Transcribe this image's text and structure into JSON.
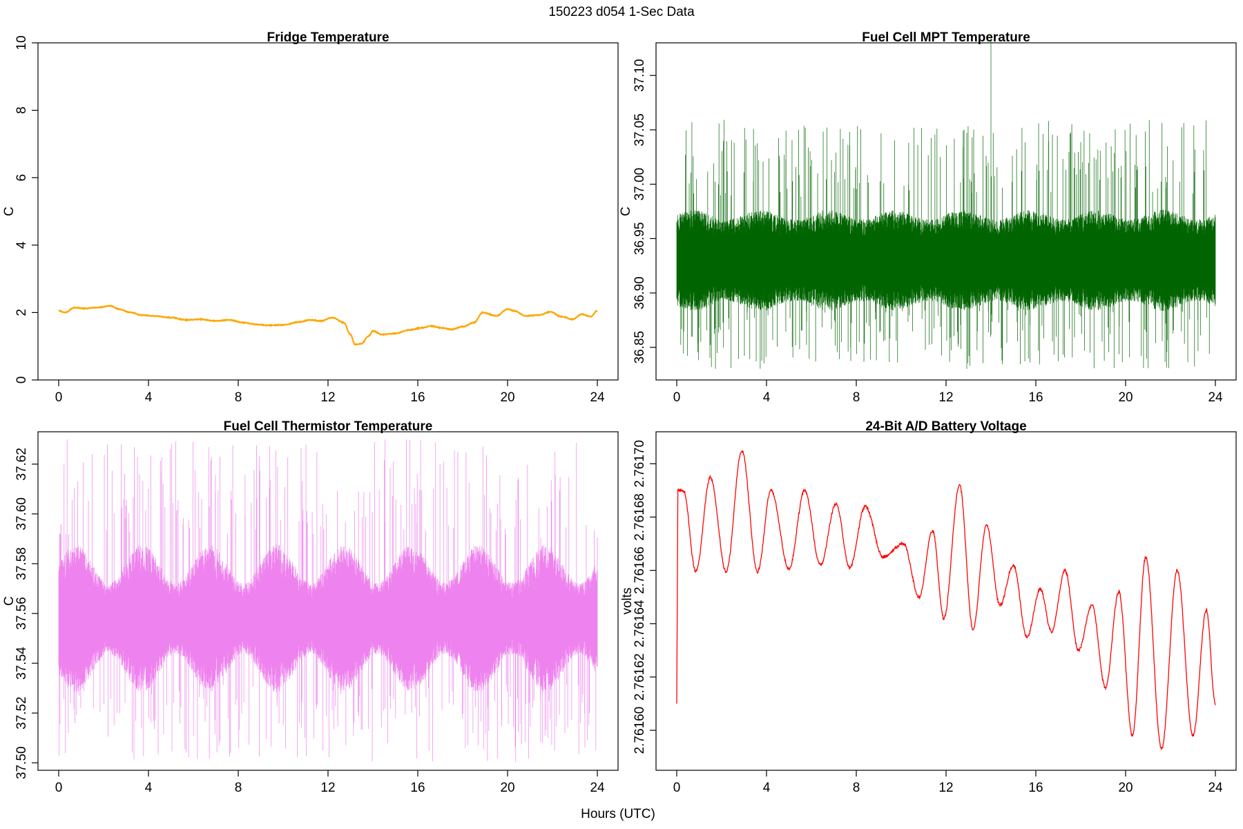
{
  "suptitle": "150223   d054   1-Sec Data",
  "common_xlabel": "Hours (UTC)",
  "chart_data": [
    {
      "type": "line",
      "title": "Fridge Temperature",
      "xlabel": "",
      "ylabel": "C",
      "xlim": [
        0,
        24
      ],
      "ylim": [
        0,
        10
      ],
      "xticks": [
        0,
        4,
        8,
        12,
        16,
        20,
        24
      ],
      "yticks": [
        "0",
        "2",
        "4",
        "6",
        "8",
        "10"
      ],
      "color": "#FFA500",
      "grid": false,
      "noise": 0.012,
      "x": [
        0,
        0.3,
        0.7,
        1.2,
        1.7,
        2.3,
        2.7,
        3.2,
        3.7,
        4.2,
        5,
        5.7,
        6.3,
        7,
        7.6,
        8.2,
        8.8,
        9.3,
        10,
        10.7,
        11.2,
        11.7,
        12.2,
        12.7,
        13.0,
        13.2,
        13.5,
        13.8,
        14.0,
        14.4,
        15,
        15.6,
        16.2,
        16.6,
        17,
        17.5,
        18,
        18.5,
        18.9,
        19.5,
        20.0,
        20.3,
        20.8,
        21.4,
        21.9,
        22.4,
        22.9,
        23.3,
        23.7,
        24
      ],
      "values": [
        2.05,
        2.0,
        2.15,
        2.12,
        2.15,
        2.2,
        2.1,
        2.0,
        1.92,
        1.9,
        1.85,
        1.78,
        1.8,
        1.75,
        1.78,
        1.7,
        1.65,
        1.62,
        1.63,
        1.72,
        1.78,
        1.75,
        1.85,
        1.7,
        1.35,
        1.05,
        1.08,
        1.3,
        1.45,
        1.35,
        1.38,
        1.48,
        1.55,
        1.6,
        1.55,
        1.5,
        1.58,
        1.7,
        2.0,
        1.9,
        2.1,
        2.05,
        1.9,
        1.92,
        2.02,
        1.88,
        1.8,
        1.95,
        1.88,
        2.05
      ]
    },
    {
      "type": "line",
      "title": "Fuel Cell MPT Temperature",
      "xlabel": "",
      "ylabel": "C",
      "xlim": [
        0,
        24
      ],
      "ylim": [
        36.82,
        37.13
      ],
      "xticks": [
        0,
        4,
        8,
        12,
        16,
        20,
        24
      ],
      "yticks": [
        "36.85",
        "36.90",
        "36.95",
        "37.00",
        "37.05",
        "37.10"
      ],
      "color": "#006400",
      "grid": false,
      "mean": 36.93,
      "band": 0.042,
      "spike_min": 36.83,
      "spike_max": 37.06,
      "outlier": {
        "x": 14.0,
        "value": 37.135
      }
    },
    {
      "type": "line",
      "title": "Fuel Cell Thermistor Temperature",
      "xlabel": "",
      "ylabel": "C",
      "xlim": [
        0,
        24
      ],
      "ylim": [
        37.497,
        37.633
      ],
      "xticks": [
        0,
        4,
        8,
        12,
        16,
        20,
        24
      ],
      "yticks": [
        "37.50",
        "37.52",
        "37.54",
        "37.56",
        "37.58",
        "37.60",
        "37.62"
      ],
      "color": "#EE82EE",
      "grid": false,
      "mean": 37.558,
      "band": 0.022,
      "spike_min": 37.5,
      "spike_max": 37.63
    },
    {
      "type": "line",
      "title": "24-Bit A/D Battery Voltage",
      "xlabel": "",
      "ylabel": "volts",
      "xlim": [
        0,
        24
      ],
      "ylim": [
        2.761585,
        2.761712
      ],
      "xticks": [
        0,
        4,
        8,
        12,
        16,
        20,
        24
      ],
      "yticks": [
        "2.76160",
        "2.76162",
        "2.76164",
        "2.76166",
        "2.76168",
        "2.76170"
      ],
      "color": "#FF0000",
      "grid": false,
      "noise": 6e-07,
      "start_point": {
        "x": 0.0,
        "value": 2.76161
      },
      "x": [
        0.05,
        0.3,
        0.85,
        1.5,
        2.2,
        2.9,
        3.6,
        4.2,
        5.0,
        5.7,
        6.4,
        7.1,
        7.7,
        8.4,
        9.2,
        10.1,
        10.8,
        11.4,
        11.9,
        12.6,
        13.2,
        13.8,
        14.4,
        15.0,
        15.6,
        16.2,
        16.7,
        17.3,
        17.9,
        18.5,
        19.1,
        19.7,
        20.3,
        20.9,
        21.6,
        22.3,
        23.0,
        23.6,
        24.0
      ],
      "values": [
        2.76169,
        2.76169,
        2.7616595,
        2.761695,
        2.7616595,
        2.761705,
        2.7616595,
        2.76169,
        2.7616605,
        2.76169,
        2.761662,
        2.761685,
        2.761661,
        2.761684,
        2.761665,
        2.76167,
        2.76165,
        2.761675,
        2.761642,
        2.761692,
        2.761638,
        2.761677,
        2.761647,
        2.761662,
        2.761635,
        2.761653,
        2.761637,
        2.76166,
        2.76163,
        2.761647,
        2.761616,
        2.761652,
        2.761598,
        2.761665,
        2.761593,
        2.76166,
        2.761598,
        2.761645,
        2.76161
      ]
    }
  ]
}
